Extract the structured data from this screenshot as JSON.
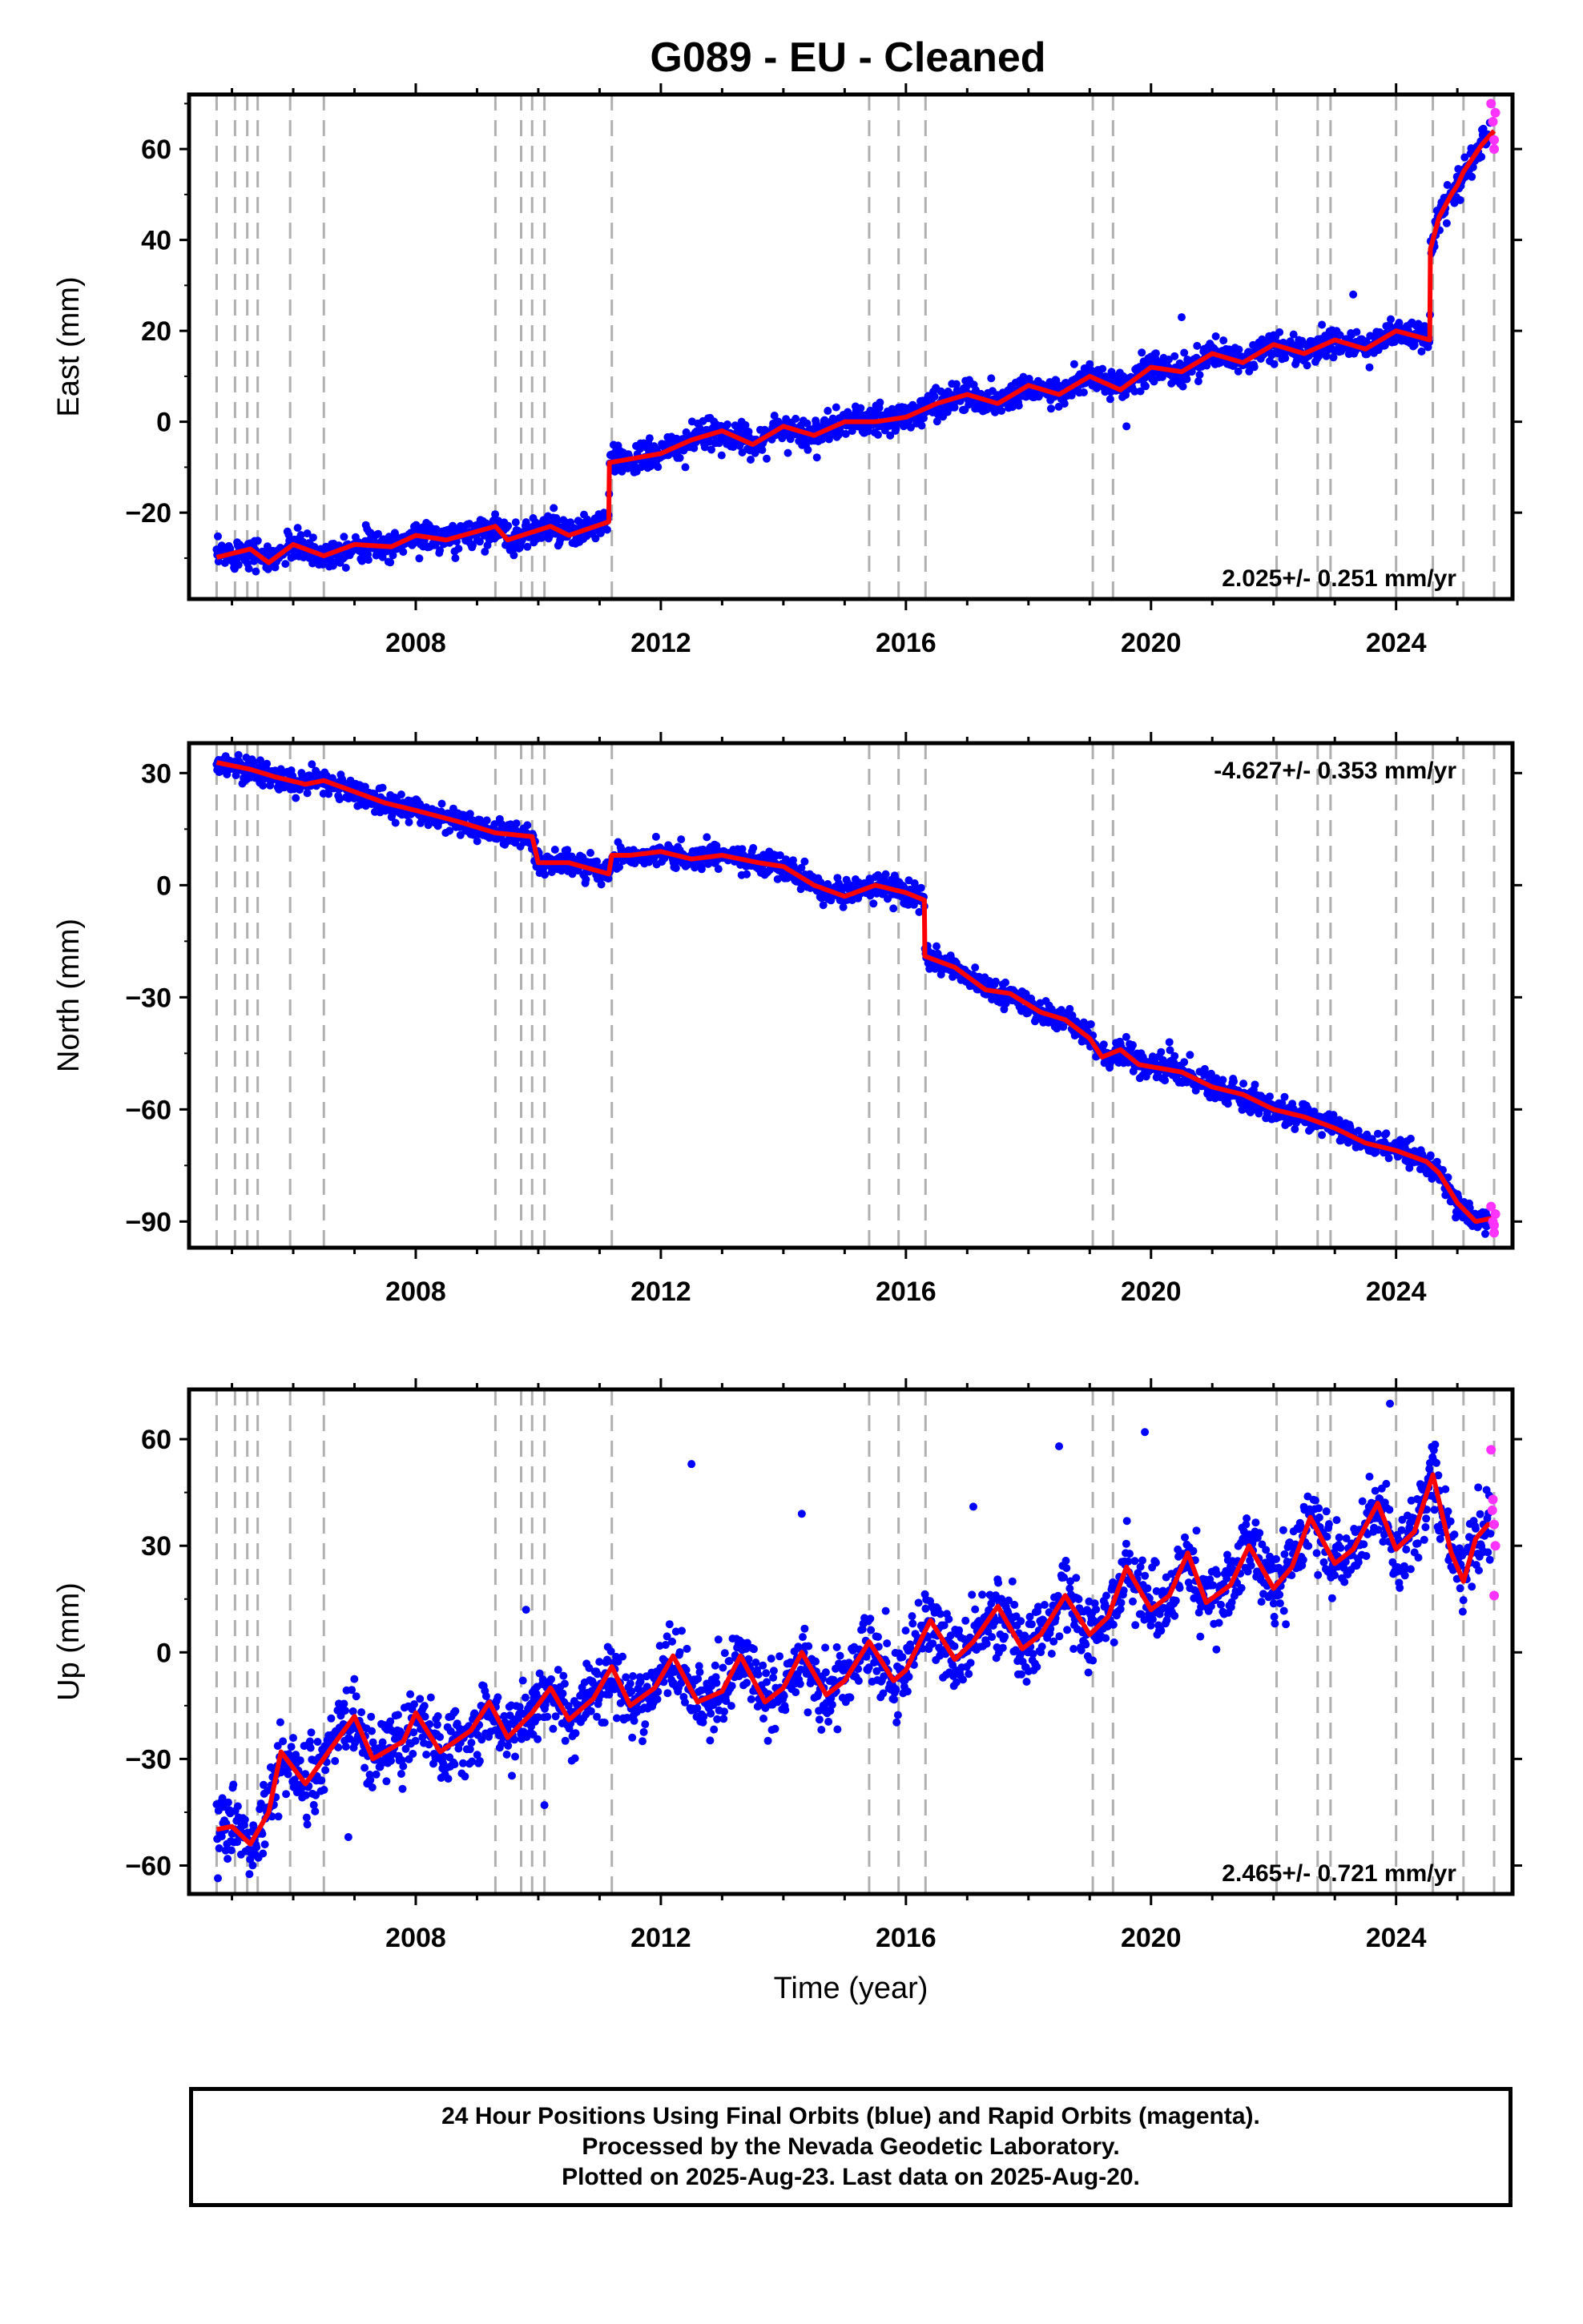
{
  "title": "G089  - EU - Cleaned",
  "xlabel": "Time (year)",
  "footer": [
    "24 Hour Positions Using Final Orbits (blue) and Rapid Orbits (magenta).",
    "Processed by the Nevada Geodetic Laboratory.",
    "Plotted on 2025-Aug-23. Last data on 2025-Aug-20."
  ],
  "colors": {
    "final_orbits": "#0000ff",
    "rapid_orbits": "#ff33ff",
    "model": "#ff0000",
    "step_lines": "#b0b0b0"
  },
  "chart_data": [
    {
      "type": "scatter",
      "ylabel": "East (mm)",
      "rate": "2.025+/- 0.251 mm/yr",
      "xlim": [
        2004.3,
        2025.9
      ],
      "ylim": [
        -39,
        72
      ],
      "xticks": [
        2008,
        2012,
        2016,
        2020,
        2024
      ],
      "yticks": [
        -20,
        0,
        20,
        40,
        60
      ],
      "ytick_labels": [
        "−20",
        "0",
        "20",
        "40",
        "60"
      ],
      "grid": false,
      "trend_knots": [
        [
          2004.7,
          -30
        ],
        [
          2005.3,
          -28
        ],
        [
          2005.6,
          -31
        ],
        [
          2006.0,
          -27
        ],
        [
          2006.5,
          -29.5
        ],
        [
          2007.0,
          -27
        ],
        [
          2007.6,
          -27.5
        ],
        [
          2008.0,
          -25
        ],
        [
          2008.5,
          -26
        ],
        [
          2009.3,
          -23
        ],
        [
          2009.5,
          -26
        ],
        [
          2010.2,
          -23
        ],
        [
          2010.5,
          -25
        ],
        [
          2011.15,
          -22
        ],
        [
          2011.16,
          -9
        ],
        [
          2012.0,
          -7
        ],
        [
          2012.5,
          -4
        ],
        [
          2013.0,
          -2
        ],
        [
          2013.5,
          -5
        ],
        [
          2014.0,
          -1
        ],
        [
          2014.5,
          -3
        ],
        [
          2015.0,
          0
        ],
        [
          2015.5,
          0
        ],
        [
          2016.0,
          1
        ],
        [
          2016.5,
          4
        ],
        [
          2017.0,
          6
        ],
        [
          2017.5,
          4
        ],
        [
          2018.0,
          8
        ],
        [
          2018.5,
          6
        ],
        [
          2019.0,
          10
        ],
        [
          2019.5,
          7
        ],
        [
          2020.0,
          12
        ],
        [
          2020.5,
          11
        ],
        [
          2021.0,
          15
        ],
        [
          2021.5,
          13
        ],
        [
          2022.0,
          17
        ],
        [
          2022.5,
          15
        ],
        [
          2023.0,
          18
        ],
        [
          2023.5,
          16
        ],
        [
          2024.0,
          20
        ],
        [
          2024.55,
          18
        ],
        [
          2024.56,
          38
        ],
        [
          2024.7,
          45
        ],
        [
          2024.9,
          50
        ],
        [
          2025.0,
          52
        ],
        [
          2025.1,
          55
        ],
        [
          2025.4,
          61
        ],
        [
          2025.6,
          64
        ]
      ],
      "noise_sd": 1.6,
      "outliers": [
        [
          2023.3,
          28
        ],
        [
          2019.6,
          -1
        ],
        [
          2020.5,
          23
        ],
        [
          2012.4,
          -10
        ]
      ],
      "rapid_points": [
        [
          2025.55,
          70
        ],
        [
          2025.58,
          66
        ],
        [
          2025.6,
          62
        ],
        [
          2025.62,
          68
        ],
        [
          2025.6,
          60
        ]
      ],
      "rate_position": "bottom-right"
    },
    {
      "type": "scatter",
      "ylabel": "North (mm)",
      "rate": "-4.627+/- 0.353 mm/yr",
      "xlim": [
        2004.3,
        2025.9
      ],
      "ylim": [
        -97,
        38
      ],
      "xticks": [
        2008,
        2012,
        2016,
        2020,
        2024
      ],
      "yticks": [
        -90,
        -60,
        -30,
        0,
        30
      ],
      "ytick_labels": [
        "−90",
        "−60",
        "−30",
        "0",
        "30"
      ],
      "grid": false,
      "trend_knots": [
        [
          2004.7,
          33
        ],
        [
          2005.3,
          31
        ],
        [
          2005.7,
          29
        ],
        [
          2006.2,
          27
        ],
        [
          2006.5,
          28
        ],
        [
          2007.0,
          25
        ],
        [
          2007.5,
          22
        ],
        [
          2008.0,
          20
        ],
        [
          2008.7,
          17
        ],
        [
          2009.3,
          14
        ],
        [
          2009.9,
          13
        ],
        [
          2010.0,
          6
        ],
        [
          2010.5,
          6
        ],
        [
          2011.15,
          3
        ],
        [
          2011.2,
          8
        ],
        [
          2011.5,
          8
        ],
        [
          2012.0,
          9
        ],
        [
          2012.5,
          7
        ],
        [
          2013.0,
          8
        ],
        [
          2013.6,
          6
        ],
        [
          2014.0,
          5
        ],
        [
          2014.5,
          0
        ],
        [
          2015.0,
          -3
        ],
        [
          2015.5,
          0
        ],
        [
          2016.0,
          -2
        ],
        [
          2016.3,
          -4
        ],
        [
          2016.31,
          -19
        ],
        [
          2016.8,
          -22
        ],
        [
          2017.3,
          -28
        ],
        [
          2017.7,
          -29
        ],
        [
          2018.2,
          -34
        ],
        [
          2018.6,
          -36
        ],
        [
          2019.0,
          -41
        ],
        [
          2019.2,
          -46
        ],
        [
          2019.5,
          -44
        ],
        [
          2019.8,
          -48
        ],
        [
          2020.5,
          -50
        ],
        [
          2021.0,
          -54
        ],
        [
          2021.5,
          -56
        ],
        [
          2022.0,
          -60
        ],
        [
          2022.5,
          -62
        ],
        [
          2023.0,
          -65
        ],
        [
          2023.5,
          -69
        ],
        [
          2024.0,
          -71
        ],
        [
          2024.5,
          -74
        ],
        [
          2024.7,
          -77
        ],
        [
          2025.0,
          -85
        ],
        [
          2025.3,
          -90
        ],
        [
          2025.6,
          -89
        ]
      ],
      "noise_sd": 1.6,
      "outliers": [
        [
          2020.3,
          -42
        ],
        [
          2017.0,
          -25
        ]
      ],
      "rapid_points": [
        [
          2025.55,
          -86
        ],
        [
          2025.58,
          -90
        ],
        [
          2025.6,
          -93
        ],
        [
          2025.62,
          -88
        ],
        [
          2025.6,
          -91
        ]
      ],
      "rate_position": "top-right"
    },
    {
      "type": "scatter",
      "ylabel": "Up (mm)",
      "rate": "2.465+/- 0.721 mm/yr",
      "xlim": [
        2004.3,
        2025.9
      ],
      "ylim": [
        -68,
        74
      ],
      "xticks": [
        2008,
        2012,
        2016,
        2020,
        2024
      ],
      "yticks": [
        -60,
        -30,
        0,
        30,
        60
      ],
      "ytick_labels": [
        "−60",
        "−30",
        "0",
        "30",
        "60"
      ],
      "grid": false,
      "trend_knots": [
        [
          2004.7,
          -50
        ],
        [
          2005.0,
          -49
        ],
        [
          2005.3,
          -54
        ],
        [
          2005.6,
          -45
        ],
        [
          2005.8,
          -28
        ],
        [
          2006.2,
          -37
        ],
        [
          2006.7,
          -25
        ],
        [
          2007.0,
          -18
        ],
        [
          2007.3,
          -30
        ],
        [
          2007.8,
          -25
        ],
        [
          2008.0,
          -17
        ],
        [
          2008.4,
          -28
        ],
        [
          2008.9,
          -22
        ],
        [
          2009.2,
          -14
        ],
        [
          2009.5,
          -24
        ],
        [
          2009.9,
          -17
        ],
        [
          2010.2,
          -10
        ],
        [
          2010.5,
          -19
        ],
        [
          2010.9,
          -13
        ],
        [
          2011.2,
          -4
        ],
        [
          2011.5,
          -15
        ],
        [
          2011.9,
          -10
        ],
        [
          2012.2,
          -1
        ],
        [
          2012.6,
          -14
        ],
        [
          2013.0,
          -11
        ],
        [
          2013.3,
          -1
        ],
        [
          2013.7,
          -14
        ],
        [
          2014.0,
          -10
        ],
        [
          2014.3,
          0
        ],
        [
          2014.7,
          -12
        ],
        [
          2015.0,
          -8
        ],
        [
          2015.4,
          3
        ],
        [
          2015.8,
          -8
        ],
        [
          2016.0,
          -5
        ],
        [
          2016.4,
          9
        ],
        [
          2016.8,
          -2
        ],
        [
          2017.1,
          3
        ],
        [
          2017.5,
          13
        ],
        [
          2017.9,
          1
        ],
        [
          2018.2,
          5
        ],
        [
          2018.6,
          16
        ],
        [
          2019.0,
          5
        ],
        [
          2019.3,
          10
        ],
        [
          2019.6,
          24
        ],
        [
          2020.0,
          12
        ],
        [
          2020.3,
          16
        ],
        [
          2020.6,
          28
        ],
        [
          2020.9,
          14
        ],
        [
          2021.3,
          19
        ],
        [
          2021.6,
          30
        ],
        [
          2022.0,
          18
        ],
        [
          2022.3,
          24
        ],
        [
          2022.6,
          38
        ],
        [
          2023.0,
          25
        ],
        [
          2023.3,
          29
        ],
        [
          2023.7,
          42
        ],
        [
          2024.0,
          29
        ],
        [
          2024.3,
          34
        ],
        [
          2024.6,
          50
        ],
        [
          2024.9,
          28
        ],
        [
          2025.1,
          20
        ],
        [
          2025.3,
          32
        ],
        [
          2025.5,
          36
        ]
      ],
      "noise_sd": 5,
      "outliers": [
        [
          2012.5,
          53
        ],
        [
          2023.9,
          70
        ],
        [
          2010.1,
          -43
        ],
        [
          2006.9,
          -52
        ],
        [
          2017.1,
          41
        ],
        [
          2018.5,
          58
        ],
        [
          2019.9,
          62
        ],
        [
          2014.3,
          39
        ],
        [
          2009.8,
          12
        ]
      ],
      "rapid_points": [
        [
          2025.55,
          57
        ],
        [
          2025.58,
          43
        ],
        [
          2025.6,
          36
        ],
        [
          2025.62,
          30
        ],
        [
          2025.6,
          16
        ],
        [
          2025.57,
          40
        ]
      ],
      "rate_position": "bottom-right"
    }
  ],
  "step_lines": [
    2004.75,
    2005.05,
    2005.25,
    2005.42,
    2005.95,
    2006.5,
    2009.3,
    2009.72,
    2009.9,
    2010.1,
    2011.2,
    2015.4,
    2015.88,
    2016.32,
    2019.05,
    2019.38,
    2022.05,
    2022.72,
    2022.93,
    2024.0,
    2024.6,
    2025.1,
    2025.6
  ]
}
